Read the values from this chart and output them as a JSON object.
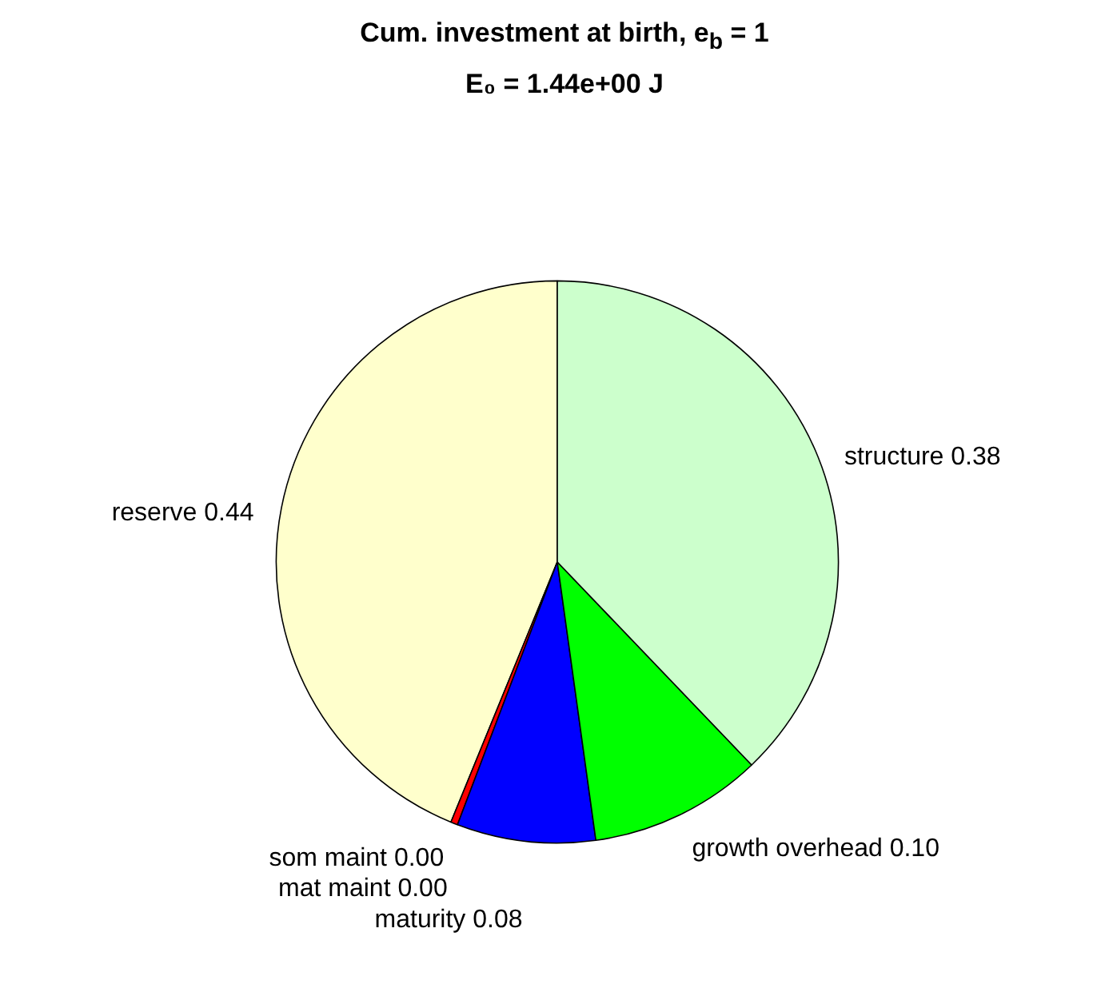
{
  "chart_data": {
    "type": "pie",
    "title": "Cum. investment at birth, e$_{b}$ = 1",
    "subtitle": "E₀ = 1.44e+00 J",
    "categories": [
      "reserve",
      "som maint",
      "mat maint",
      "maturity",
      "growth overhead",
      "structure"
    ],
    "values": [
      0.44,
      0.004,
      0.0,
      0.08,
      0.1,
      0.38
    ],
    "value_labels": [
      "0.44",
      "0.00",
      "0.00",
      "0.08",
      "0.10",
      "0.38"
    ],
    "colors": [
      "#ffffcc",
      "#ff0000",
      "#ff00ff",
      "#0000ff",
      "#00ff00",
      "#ccffcc"
    ]
  }
}
